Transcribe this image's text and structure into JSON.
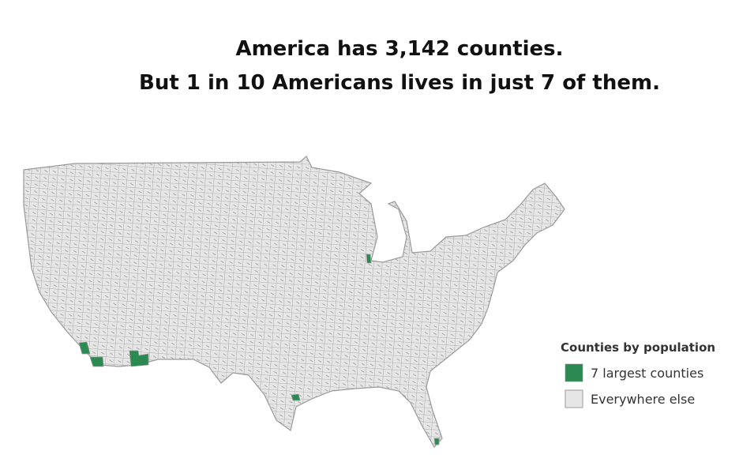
{
  "title": {
    "line1": "America has 3,142 counties.",
    "line2": "But 1 in 10 Americans lives in just 7 of them."
  },
  "legend": {
    "title": "Counties by population",
    "items": [
      {
        "label": "7 largest counties",
        "color": "#2a8a52"
      },
      {
        "label": "Everywhere else",
        "color": "#e6e6e6"
      }
    ]
  }
}
